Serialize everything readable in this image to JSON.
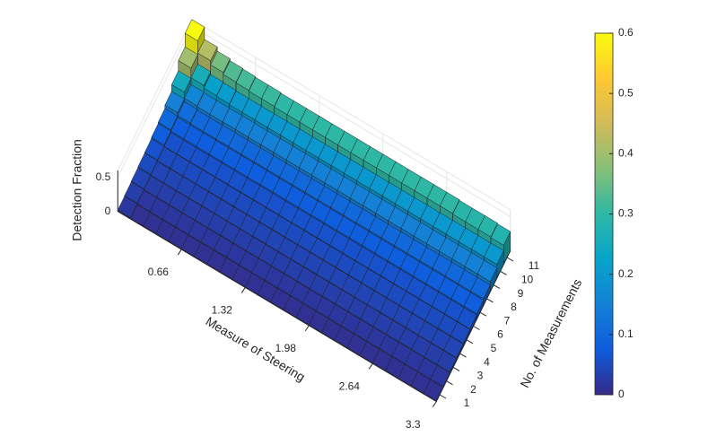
{
  "chart_data": {
    "type": "bar3",
    "xlabel": "Measure of Steering",
    "ylabel": "No. of Measurements",
    "zlabel": "Detection Fraction",
    "xlim": [
      0,
      3.3
    ],
    "xticks": [
      0.66,
      1.32,
      1.98,
      2.64,
      3.3
    ],
    "ylim": [
      0.5,
      11.5
    ],
    "yticks": [
      1,
      2,
      3,
      4,
      5,
      6,
      7,
      8,
      9,
      10,
      11
    ],
    "zlim": [
      0,
      0.6
    ],
    "zticks": [
      0,
      0.5
    ],
    "clim": [
      0,
      0.6
    ],
    "cticks": [
      0,
      0.1,
      0.2,
      0.3,
      0.4,
      0.5,
      0.6
    ],
    "colormap": [
      "#352a87",
      "#0f5cdd",
      "#1481d6",
      "#06a4ca",
      "#2eb7a4",
      "#87bf77",
      "#d1bb59",
      "#fec832",
      "#f9fb0e"
    ],
    "z": [
      [
        0.02,
        0.01,
        0.01,
        0.01,
        0.01,
        0.01,
        0.01,
        0.01,
        0.01,
        0.01,
        0.01,
        0.01,
        0.01,
        0.01,
        0.01,
        0.01,
        0.01,
        0.01,
        0.01,
        0.01,
        0.01,
        0.01,
        0.01,
        0.01,
        0.01
      ],
      [
        0.03,
        0.02,
        0.02,
        0.02,
        0.02,
        0.02,
        0.02,
        0.02,
        0.02,
        0.02,
        0.02,
        0.02,
        0.02,
        0.02,
        0.02,
        0.02,
        0.02,
        0.02,
        0.02,
        0.02,
        0.02,
        0.02,
        0.02,
        0.02,
        0.02
      ],
      [
        0.04,
        0.03,
        0.03,
        0.03,
        0.03,
        0.03,
        0.03,
        0.03,
        0.03,
        0.03,
        0.03,
        0.03,
        0.03,
        0.03,
        0.03,
        0.03,
        0.03,
        0.03,
        0.03,
        0.03,
        0.03,
        0.03,
        0.03,
        0.03,
        0.03
      ],
      [
        0.05,
        0.04,
        0.04,
        0.04,
        0.04,
        0.04,
        0.04,
        0.04,
        0.04,
        0.04,
        0.04,
        0.04,
        0.04,
        0.04,
        0.04,
        0.04,
        0.04,
        0.04,
        0.04,
        0.04,
        0.04,
        0.04,
        0.04,
        0.04,
        0.04
      ],
      [
        0.06,
        0.05,
        0.05,
        0.05,
        0.05,
        0.05,
        0.05,
        0.05,
        0.05,
        0.05,
        0.05,
        0.05,
        0.05,
        0.05,
        0.05,
        0.05,
        0.05,
        0.05,
        0.05,
        0.05,
        0.05,
        0.05,
        0.05,
        0.05,
        0.05
      ],
      [
        0.08,
        0.06,
        0.06,
        0.06,
        0.06,
        0.06,
        0.06,
        0.06,
        0.06,
        0.06,
        0.06,
        0.06,
        0.06,
        0.06,
        0.06,
        0.06,
        0.06,
        0.06,
        0.06,
        0.06,
        0.06,
        0.06,
        0.06,
        0.06,
        0.06
      ],
      [
        0.1,
        0.08,
        0.08,
        0.08,
        0.08,
        0.08,
        0.08,
        0.08,
        0.08,
        0.08,
        0.08,
        0.08,
        0.08,
        0.08,
        0.08,
        0.08,
        0.08,
        0.08,
        0.08,
        0.08,
        0.08,
        0.08,
        0.08,
        0.08,
        0.08
      ],
      [
        0.15,
        0.11,
        0.1,
        0.1,
        0.1,
        0.1,
        0.1,
        0.1,
        0.1,
        0.1,
        0.1,
        0.1,
        0.1,
        0.1,
        0.1,
        0.1,
        0.1,
        0.1,
        0.1,
        0.1,
        0.1,
        0.1,
        0.1,
        0.1,
        0.1
      ],
      [
        0.25,
        0.16,
        0.15,
        0.15,
        0.15,
        0.15,
        0.15,
        0.15,
        0.15,
        0.15,
        0.15,
        0.15,
        0.15,
        0.15,
        0.15,
        0.15,
        0.15,
        0.15,
        0.15,
        0.15,
        0.15,
        0.15,
        0.15,
        0.15,
        0.15
      ],
      [
        0.4,
        0.26,
        0.22,
        0.21,
        0.2,
        0.2,
        0.2,
        0.2,
        0.2,
        0.2,
        0.2,
        0.2,
        0.2,
        0.2,
        0.2,
        0.2,
        0.2,
        0.2,
        0.2,
        0.2,
        0.2,
        0.2,
        0.2,
        0.2,
        0.2
      ],
      [
        0.6,
        0.42,
        0.36,
        0.33,
        0.32,
        0.31,
        0.31,
        0.3,
        0.3,
        0.3,
        0.3,
        0.3,
        0.3,
        0.3,
        0.3,
        0.3,
        0.3,
        0.3,
        0.3,
        0.3,
        0.3,
        0.29,
        0.29,
        0.29,
        0.28
      ]
    ]
  }
}
